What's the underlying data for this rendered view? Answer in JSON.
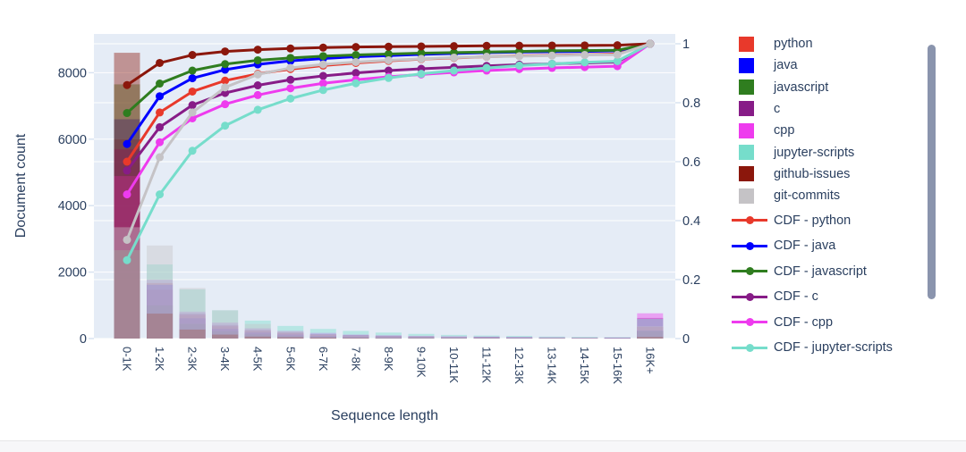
{
  "chart": {
    "plot_bgcolor": "#e5ecf6",
    "grid_color": "#ffffff",
    "tick_stub_color": "#d9e3f1",
    "text_color": "#2a3f5f",
    "bar_opacity": 0.42,
    "xlabel": "Sequence length",
    "ylabel_left": "Document count",
    "yticks_left": [
      "0",
      "2000",
      "4000",
      "6000",
      "8000"
    ],
    "ytick_left_values": [
      0,
      2000,
      4000,
      6000,
      8000
    ],
    "yticks_right": [
      "0",
      "0.2",
      "0.4",
      "0.6",
      "0.8",
      "1"
    ],
    "ytick_right_values": [
      0,
      0.2,
      0.4,
      0.6,
      0.8,
      1
    ],
    "legend_scrollbar_color": "#8a94ad",
    "footer_strip_color": "#f7f7f9"
  },
  "chart_data": {
    "type": "bar",
    "subtype": "overlaid histogram bars + CDF line markers on secondary axis",
    "title": "",
    "xlabel": "Sequence length",
    "ylabel": "Document count",
    "ylabel_right": "",
    "ylim_left": [
      0,
      9170
    ],
    "ylim_right": [
      0,
      1.033
    ],
    "grid": true,
    "legend_position": "right",
    "categories": [
      "0-1K",
      "1-2K",
      "2-3K",
      "3-4K",
      "4-5K",
      "5-6K",
      "6-7K",
      "7-8K",
      "8-9K",
      "9-10K",
      "10-11K",
      "11-12K",
      "12-13K",
      "13-14K",
      "14-15K",
      "15-16K",
      "16K+"
    ],
    "bar_series": [
      {
        "name": "python",
        "color": "#e8392b",
        "values": [
          6000,
          1670,
          710,
          370,
          230,
          160,
          120,
          90,
          70,
          60,
          40,
          40,
          30,
          20,
          20,
          20,
          350
        ]
      },
      {
        "name": "java",
        "color": "#0000ff",
        "values": [
          6600,
          1620,
          610,
          290,
          180,
          120,
          80,
          60,
          40,
          40,
          30,
          30,
          20,
          10,
          10,
          20,
          240
        ]
      },
      {
        "name": "javascript",
        "color": "#2f7d1f",
        "values": [
          7650,
          1000,
          440,
          220,
          130,
          80,
          60,
          40,
          30,
          30,
          20,
          20,
          20,
          20,
          10,
          10,
          220
        ]
      },
      {
        "name": "c",
        "color": "#871c87",
        "values": [
          5700,
          1470,
          750,
          410,
          260,
          190,
          130,
          100,
          80,
          60,
          50,
          50,
          40,
          30,
          30,
          30,
          620
        ]
      },
      {
        "name": "cpp",
        "color": "#ee3bee",
        "values": [
          4890,
          1770,
          810,
          480,
          310,
          230,
          170,
          120,
          100,
          80,
          70,
          60,
          50,
          40,
          30,
          30,
          760
        ]
      },
      {
        "name": "jupyter-scripts",
        "color": "#76ddcb",
        "values": [
          2660,
          2230,
          1480,
          850,
          540,
          380,
          290,
          230,
          180,
          140,
          110,
          90,
          80,
          60,
          50,
          40,
          590
        ]
      },
      {
        "name": "github-issues",
        "color": "#8b170c",
        "values": [
          8600,
          750,
          270,
          120,
          60,
          40,
          30,
          20,
          10,
          10,
          10,
          10,
          5,
          5,
          5,
          5,
          50
        ]
      },
      {
        "name": "git-commits",
        "color": "#c5c3c6",
        "values": [
          3350,
          2800,
          1520,
          850,
          440,
          220,
          120,
          80,
          60,
          50,
          40,
          30,
          20,
          20,
          20,
          10,
          370
        ]
      }
    ],
    "cdf_series": [
      {
        "name": "CDF - python",
        "color": "#e8392b",
        "values": [
          0.6,
          0.767,
          0.838,
          0.875,
          0.898,
          0.914,
          0.926,
          0.935,
          0.942,
          0.948,
          0.952,
          0.956,
          0.959,
          0.961,
          0.963,
          0.965,
          1.0
        ]
      },
      {
        "name": "CDF - java",
        "color": "#0000ff",
        "values": [
          0.66,
          0.822,
          0.883,
          0.912,
          0.93,
          0.942,
          0.95,
          0.956,
          0.96,
          0.964,
          0.967,
          0.97,
          0.972,
          0.973,
          0.974,
          0.976,
          1.0
        ]
      },
      {
        "name": "CDF - javascript",
        "color": "#2f7d1f",
        "values": [
          0.765,
          0.865,
          0.909,
          0.931,
          0.944,
          0.952,
          0.958,
          0.962,
          0.965,
          0.968,
          0.97,
          0.972,
          0.974,
          0.976,
          0.977,
          0.978,
          1.0
        ]
      },
      {
        "name": "CDF - c",
        "color": "#871c87",
        "values": [
          0.57,
          0.717,
          0.792,
          0.833,
          0.859,
          0.878,
          0.891,
          0.901,
          0.909,
          0.915,
          0.92,
          0.925,
          0.929,
          0.932,
          0.935,
          0.938,
          1.0
        ]
      },
      {
        "name": "CDF - cpp",
        "color": "#ee3bee",
        "values": [
          0.489,
          0.666,
          0.747,
          0.795,
          0.826,
          0.849,
          0.866,
          0.878,
          0.888,
          0.896,
          0.903,
          0.909,
          0.914,
          0.918,
          0.921,
          0.924,
          1.0
        ]
      },
      {
        "name": "CDF - jupyter-scripts",
        "color": "#76ddcb",
        "values": [
          0.266,
          0.489,
          0.637,
          0.722,
          0.776,
          0.814,
          0.843,
          0.866,
          0.884,
          0.898,
          0.909,
          0.918,
          0.926,
          0.932,
          0.937,
          0.941,
          1.0
        ]
      },
      {
        "name": "CDF - github-issues",
        "color": "#8b170c",
        "values": [
          0.86,
          0.935,
          0.962,
          0.974,
          0.98,
          0.984,
          0.987,
          0.989,
          0.99,
          0.991,
          0.992,
          0.993,
          0.9935,
          0.994,
          0.9945,
          0.995,
          1.0
        ]
      },
      {
        "name": "CDF - git-commits",
        "color": "#c5c3c6",
        "values": [
          0.335,
          0.615,
          0.767,
          0.852,
          0.896,
          0.918,
          0.93,
          0.938,
          0.944,
          0.949,
          0.953,
          0.956,
          0.958,
          0.96,
          0.962,
          0.963,
          1.0
        ]
      }
    ]
  },
  "legend": {
    "items": [
      {
        "label": "python",
        "color": "#e8392b",
        "swatch": "square"
      },
      {
        "label": "java",
        "color": "#0000ff",
        "swatch": "square"
      },
      {
        "label": "javascript",
        "color": "#2f7d1f",
        "swatch": "square"
      },
      {
        "label": "c",
        "color": "#871c87",
        "swatch": "square"
      },
      {
        "label": "cpp",
        "color": "#ee3bee",
        "swatch": "square"
      },
      {
        "label": "jupyter-scripts",
        "color": "#76ddcb",
        "swatch": "square"
      },
      {
        "label": "github-issues",
        "color": "#8b170c",
        "swatch": "square"
      },
      {
        "label": "git-commits",
        "color": "#c5c3c6",
        "swatch": "square"
      },
      {
        "label": "CDF - python",
        "color": "#e8392b",
        "swatch": "line"
      },
      {
        "label": "CDF - java",
        "color": "#0000ff",
        "swatch": "line"
      },
      {
        "label": "CDF - javascript",
        "color": "#2f7d1f",
        "swatch": "line"
      },
      {
        "label": "CDF - c",
        "color": "#871c87",
        "swatch": "line"
      },
      {
        "label": "CDF - cpp",
        "color": "#ee3bee",
        "swatch": "line"
      },
      {
        "label": "CDF - jupyter-scripts",
        "color": "#76ddcb",
        "swatch": "line"
      }
    ]
  }
}
